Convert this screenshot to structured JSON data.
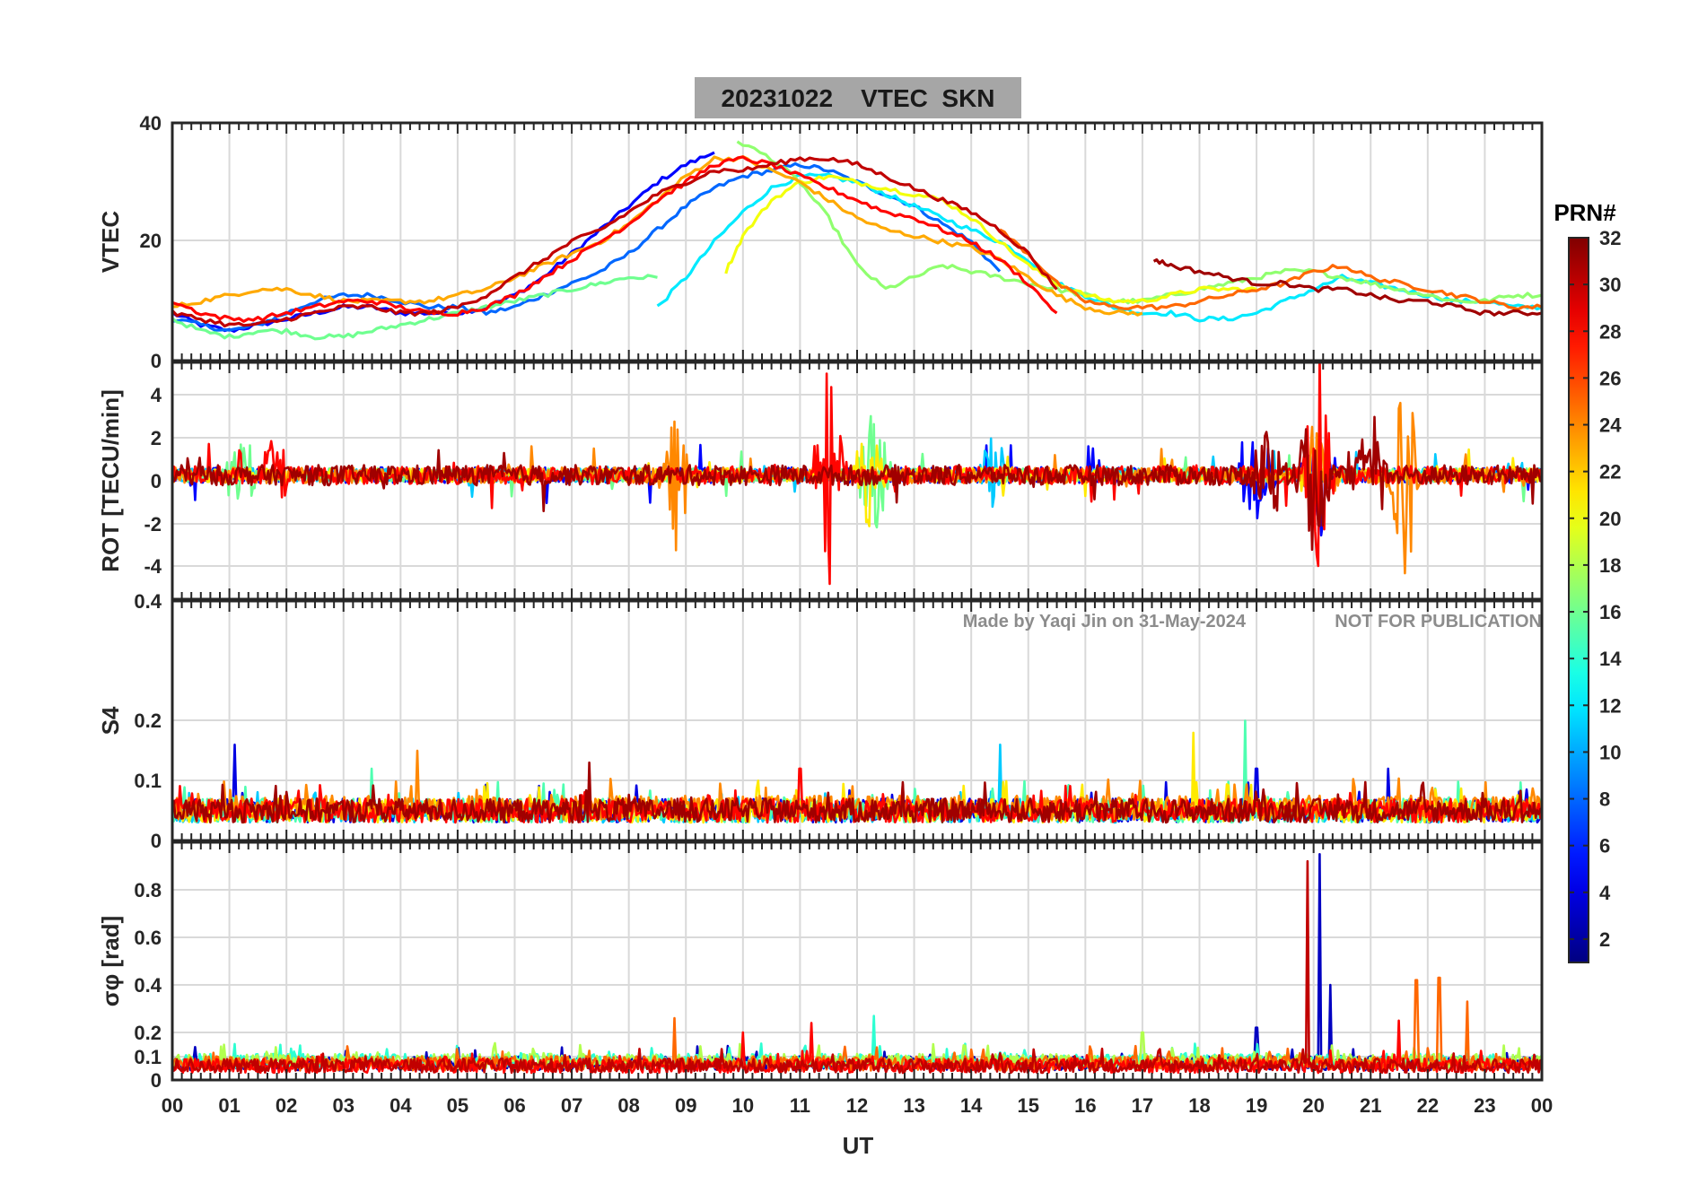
{
  "chart_data": {
    "type": "line",
    "title": "20231022    VTEC  SKN",
    "xlabel": "UT",
    "x_ticks": [
      "00",
      "01",
      "02",
      "03",
      "04",
      "05",
      "06",
      "07",
      "08",
      "09",
      "10",
      "11",
      "12",
      "13",
      "14",
      "15",
      "16",
      "17",
      "18",
      "19",
      "20",
      "21",
      "22",
      "23",
      "00"
    ],
    "xlim": [
      0,
      24
    ],
    "grid": true,
    "watermark_left": "Made by Yaqi Jin on 31-May-2024",
    "watermark_right": "NOT FOR PUBLICATION",
    "colorbar": {
      "title": "PRN#",
      "range": [
        1,
        32
      ],
      "ticks": [
        2,
        4,
        6,
        8,
        10,
        12,
        14,
        16,
        18,
        20,
        22,
        24,
        26,
        28,
        30,
        32
      ],
      "colormap": "jet"
    },
    "panels": [
      {
        "id": "vtec",
        "ylabel": "VTEC",
        "ylim": [
          0,
          40
        ],
        "y_ticks": [
          0,
          20,
          40
        ],
        "series": [
          {
            "prn": 5,
            "x": [
              0,
              0.5,
              1.0,
              1.5,
              2.0,
              2.5,
              3.0,
              3.5,
              4.0,
              4.5,
              5.0,
              5.5,
              6.0,
              6.5,
              7.0,
              7.5,
              8.0,
              8.5,
              9.0,
              9.5
            ],
            "y": [
              8,
              6,
              5,
              6,
              7,
              8,
              9,
              9,
              8,
              8,
              8,
              9,
              11,
              14,
              18,
              22,
              26,
              30,
              33,
              35
            ]
          },
          {
            "prn": 8,
            "x": [
              0,
              0.5,
              1.0,
              1.5,
              2.0,
              2.5,
              3.0,
              3.5,
              4.0,
              4.5,
              5.0,
              5.5,
              6.0,
              6.5,
              7.0,
              7.5,
              8.0,
              8.5,
              9.0,
              9.5,
              10.0,
              10.5,
              11.0,
              11.5,
              12.0,
              12.5,
              13.0,
              13.5,
              14.0,
              14.5
            ],
            "y": [
              7,
              6,
              5,
              6,
              8,
              10,
              11,
              11,
              10,
              9,
              9,
              8,
              9,
              11,
              13,
              15,
              18,
              22,
              26,
              29,
              31,
              32,
              33,
              32,
              30,
              28,
              26,
              23,
              20,
              15
            ]
          },
          {
            "prn": 12,
            "x": [
              8.5,
              9.0,
              9.5,
              10.0,
              10.5,
              11.0,
              11.5,
              12.0,
              12.5,
              13.0,
              13.5,
              14.0,
              14.5,
              15.0,
              15.5,
              16.0,
              16.5,
              17.0,
              17.5,
              18.0,
              18.5,
              19.0,
              19.5,
              20.0,
              20.5,
              21.0,
              21.5,
              22.0,
              22.5,
              23.0,
              23.5,
              24.0
            ],
            "y": [
              9,
              14,
              20,
              25,
              29,
              31,
              31,
              30,
              28,
              26,
              24,
              22,
              20,
              17,
              13,
              11,
              9,
              8,
              8,
              7,
              7,
              8,
              10,
              12,
              14,
              13,
              12,
              11,
              10,
              10,
              9,
              9
            ]
          },
          {
            "prn": 16,
            "x": [
              0,
              0.5,
              1.0,
              1.5,
              2.0,
              2.5,
              3.0,
              3.5,
              4.0,
              4.5,
              5.0,
              5.5,
              6.0,
              6.5,
              7.0,
              7.5,
              8.0,
              8.5
            ],
            "y": [
              7,
              5,
              4,
              5,
              5,
              4,
              4,
              5,
              6,
              7,
              8,
              9,
              10,
              11,
              12,
              13,
              14,
              14
            ]
          },
          {
            "prn": 17,
            "x": [
              9.9,
              10.5,
              11.0,
              11.5,
              12.0,
              12.5,
              13.0,
              13.5,
              14.0,
              14.5,
              15.0,
              15.5,
              16.0,
              16.5,
              17.0,
              17.5,
              18.0,
              18.5,
              19.0,
              19.5,
              20.0,
              20.5,
              21.0,
              21.5,
              22.0,
              22.5,
              23.0,
              23.5,
              24.0
            ],
            "y": [
              37,
              34,
              30,
              24,
              16,
              12,
              14,
              16,
              15,
              14,
              13,
              12,
              11,
              10,
              10,
              11,
              12,
              13,
              14,
              15,
              15,
              14,
              13,
              12,
              11,
              10,
              10,
              11,
              11
            ]
          },
          {
            "prn": 20,
            "x": [
              9.7,
              10.0,
              10.5,
              11.0,
              11.5,
              12.0,
              12.5,
              13.0,
              13.5,
              14.0,
              14.5,
              15.0,
              15.5,
              16.0,
              16.5,
              17.0,
              17.5,
              18.0,
              18.5,
              19.0
            ],
            "y": [
              15,
              21,
              27,
              30,
              31,
              30,
              29,
              28,
              27,
              24,
              20,
              16,
              13,
              11,
              10,
              10,
              11,
              12,
              12,
              12
            ]
          },
          {
            "prn": 23,
            "x": [
              0,
              0.5,
              1.0,
              1.5,
              2.0,
              2.5,
              3.0,
              3.5,
              4.0,
              4.5,
              5.0,
              5.5,
              6.0,
              6.5,
              7.0,
              7.5,
              8.0,
              8.5,
              9.0,
              9.5,
              10.0,
              10.5,
              11.0,
              11.5,
              12.0,
              12.5,
              13.0,
              13.5,
              14.0,
              14.5,
              15.0,
              15.5,
              16.0,
              16.5,
              17.0
            ],
            "y": [
              9,
              10,
              11,
              12,
              12,
              11,
              10,
              10,
              10,
              10,
              11,
              12,
              14,
              16,
              18,
              20,
              23,
              27,
              31,
              34,
              34,
              32,
              30,
              27,
              24,
              22,
              21,
              20,
              19,
              17,
              14,
              11,
              9,
              8,
              8
            ]
          },
          {
            "prn": 25,
            "x": [
              14.5,
              15.0,
              15.5,
              16.0,
              16.5,
              17.0,
              17.5,
              18.0,
              18.5,
              19.0,
              19.5,
              20.0,
              20.5,
              21.0,
              21.5,
              22.0,
              22.5,
              23.0,
              23.5,
              24.0
            ],
            "y": [
              22,
              18,
              13,
              10,
              9,
              9,
              9,
              10,
              11,
              12,
              13,
              15,
              16,
              14,
              13,
              12,
              11,
              10,
              9,
              9
            ]
          },
          {
            "prn": 28,
            "x": [
              0,
              0.5,
              1.0,
              1.5,
              2.0,
              2.5,
              3.0,
              3.5,
              4.0,
              4.5,
              5.0,
              5.5,
              6.0,
              6.5,
              7.0,
              7.5,
              8.0,
              8.5,
              9.0,
              9.5,
              10.0,
              10.5,
              11.0,
              11.5,
              12.0,
              12.5,
              13.0,
              13.5,
              14.0,
              14.5,
              15.0,
              15.5
            ],
            "y": [
              10,
              8,
              7,
              7,
              8,
              9,
              10,
              10,
              9,
              8,
              8,
              9,
              11,
              14,
              17,
              20,
              23,
              27,
              30,
              33,
              34,
              33,
              31,
              29,
              27,
              25,
              24,
              22,
              20,
              17,
              13,
              8
            ]
          },
          {
            "prn": 30,
            "x": [
              0,
              0.5,
              1.0,
              1.5,
              2.0,
              2.5,
              3.0,
              3.5,
              4.0,
              4.5,
              5.0,
              5.5,
              6.0,
              6.5,
              7.0,
              7.5,
              8.0,
              8.5,
              9.0,
              9.5,
              10.0,
              10.5,
              11.0,
              11.5,
              12.0,
              12.5,
              13.0,
              13.5,
              14.0,
              14.5,
              15.0,
              15.5
            ],
            "y": [
              8,
              7,
              6,
              6,
              7,
              8,
              9,
              9,
              8,
              8,
              9,
              11,
              14,
              17,
              20,
              22,
              25,
              28,
              30,
              32,
              32,
              33,
              34,
              34,
              33,
              31,
              29,
              27,
              25,
              22,
              18,
              12
            ]
          },
          {
            "prn": 31,
            "x": [
              17.2,
              17.5,
              18.0,
              18.5,
              19.0,
              19.5,
              20.0,
              20.5,
              21.0,
              21.5,
              22.0,
              22.5,
              23.0,
              23.5,
              24.0
            ],
            "y": [
              17,
              16,
              15,
              14,
              13,
              13,
              12,
              12,
              11,
              10,
              10,
              9,
              8,
              8,
              8
            ]
          }
        ]
      },
      {
        "id": "rot",
        "ylabel": "ROT [TECU/min]",
        "ylim": [
          -5.5,
          5
        ],
        "y_ticks": [
          -4,
          -2,
          0,
          2,
          4
        ],
        "noise_series": [
          {
            "prn": 5,
            "amp": 0.35,
            "bursts": [
              [
                19.0,
                2.6
              ],
              [
                20.1,
                3.0
              ]
            ]
          },
          {
            "prn": 11,
            "amp": 0.3,
            "bursts": [
              [
                14.4,
                1.8
              ]
            ]
          },
          {
            "prn": 16,
            "amp": 0.3,
            "bursts": [
              [
                12.3,
                3.2
              ],
              [
                1.2,
                2.0
              ]
            ]
          },
          {
            "prn": 21,
            "amp": 0.3,
            "bursts": [
              [
                12.2,
                2.5
              ]
            ]
          },
          {
            "prn": 24,
            "amp": 0.35,
            "bursts": [
              [
                8.8,
                3.5
              ],
              [
                20.1,
                3.2
              ],
              [
                21.6,
                5.2
              ]
            ]
          },
          {
            "prn": 28,
            "amp": 0.4,
            "bursts": [
              [
                11.5,
                5.0
              ],
              [
                20.1,
                5.5
              ],
              [
                1.8,
                2.2
              ]
            ]
          },
          {
            "prn": 31,
            "amp": 0.45,
            "bursts": [
              [
                20.0,
                4.5
              ],
              [
                19.2,
                2.5
              ],
              [
                21.0,
                3.0
              ]
            ]
          }
        ]
      },
      {
        "id": "s4",
        "ylabel": "S4",
        "ylim": [
          0,
          0.4
        ],
        "y_ticks": [
          0,
          0.1,
          0.2,
          0.4
        ],
        "noise_series": [
          {
            "prn": 4,
            "base": 0.05,
            "amp": 0.02,
            "spikes": [
              [
                1.1,
                0.16
              ],
              [
                19.0,
                0.12
              ],
              [
                21.3,
                0.12
              ]
            ]
          },
          {
            "prn": 11,
            "base": 0.045,
            "amp": 0.015,
            "spikes": [
              [
                14.5,
                0.16
              ]
            ]
          },
          {
            "prn": 15,
            "base": 0.05,
            "amp": 0.02,
            "spikes": [
              [
                3.5,
                0.12
              ],
              [
                18.8,
                0.2
              ]
            ]
          },
          {
            "prn": 21,
            "base": 0.05,
            "amp": 0.02,
            "spikes": [
              [
                17.9,
                0.18
              ]
            ]
          },
          {
            "prn": 24,
            "base": 0.055,
            "amp": 0.02,
            "spikes": [
              [
                4.3,
                0.15
              ]
            ]
          },
          {
            "prn": 28,
            "base": 0.05,
            "amp": 0.02,
            "spikes": [
              [
                11.0,
                0.12
              ]
            ]
          },
          {
            "prn": 31,
            "base": 0.05,
            "amp": 0.02,
            "spikes": [
              [
                7.3,
                0.13
              ]
            ]
          }
        ]
      },
      {
        "id": "sigma_phi",
        "ylabel": "σφ [rad]",
        "ylim": [
          0,
          1
        ],
        "y_ticks": [
          0,
          0.1,
          0.2,
          0.4,
          0.6,
          0.8
        ],
        "noise_series": [
          {
            "prn": 3,
            "base": 0.07,
            "amp": 0.03,
            "spikes": [
              [
                20.1,
                0.95
              ],
              [
                20.3,
                0.4
              ],
              [
                19.0,
                0.22
              ]
            ]
          },
          {
            "prn": 14,
            "base": 0.08,
            "amp": 0.03,
            "spikes": [
              [
                12.3,
                0.27
              ]
            ]
          },
          {
            "prn": 18,
            "base": 0.08,
            "amp": 0.03,
            "spikes": [
              [
                17.0,
                0.2
              ]
            ]
          },
          {
            "prn": 25,
            "base": 0.07,
            "amp": 0.03,
            "spikes": [
              [
                8.8,
                0.26
              ],
              [
                21.8,
                0.42
              ],
              [
                22.2,
                0.43
              ],
              [
                22.7,
                0.33
              ]
            ]
          },
          {
            "prn": 28,
            "base": 0.06,
            "amp": 0.03,
            "spikes": [
              [
                10.0,
                0.2
              ],
              [
                11.2,
                0.24
              ],
              [
                21.5,
                0.25
              ]
            ]
          },
          {
            "prn": 30,
            "base": 0.06,
            "amp": 0.03,
            "spikes": [
              [
                19.9,
                0.92
              ]
            ]
          }
        ]
      }
    ]
  }
}
